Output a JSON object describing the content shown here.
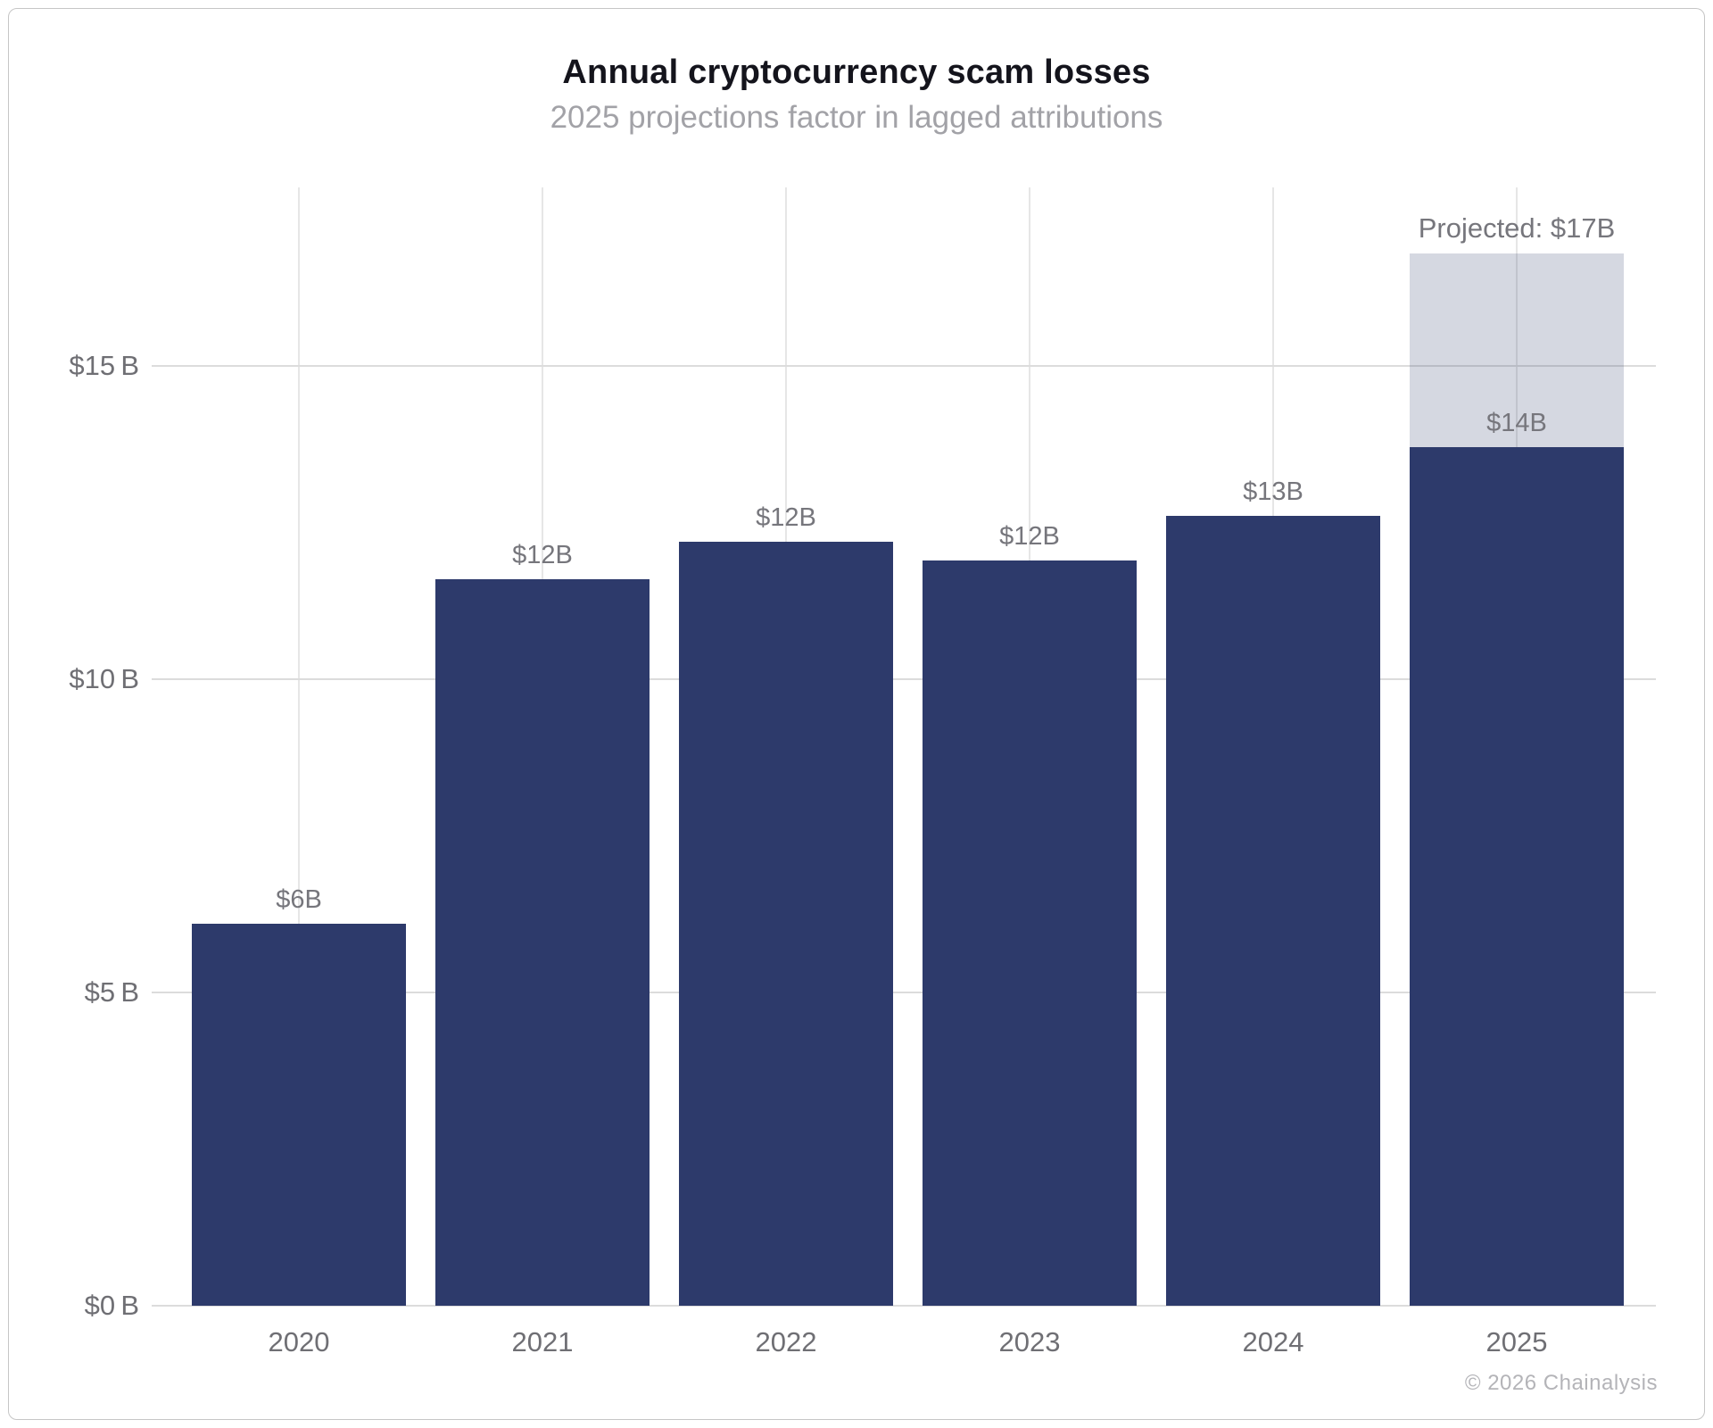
{
  "chart_data": {
    "type": "bar",
    "title": "Annual cryptocurrency scam losses",
    "subtitle": "2025 projections factor in lagged attributions",
    "categories": [
      "2020",
      "2021",
      "2022",
      "2023",
      "2024",
      "2025"
    ],
    "series": [
      {
        "name": "attributed-losses",
        "color": "#2d3a6b",
        "values": [
          6.1,
          11.6,
          12.2,
          11.9,
          12.6,
          13.7
        ]
      },
      {
        "name": "projected-additional",
        "color": "rgba(45,58,107,0.20)",
        "values": [
          0,
          0,
          0,
          0,
          0,
          3.1
        ]
      }
    ],
    "bar_labels": [
      "$6B",
      "$12B",
      "$12B",
      "$12B",
      "$13B",
      "$14B"
    ],
    "projected_annotation": {
      "category": "2025",
      "label": "Projected: $17B",
      "total": 16.8
    },
    "yticks": [
      {
        "value": 0,
        "label": "$0 B"
      },
      {
        "value": 5,
        "label": "$5 B"
      },
      {
        "value": 10,
        "label": "$10 B"
      },
      {
        "value": 15,
        "label": "$15 B"
      }
    ],
    "ylim": [
      0,
      17.85
    ],
    "xlabel": "",
    "ylabel": "",
    "grid": true,
    "legend_position": "none"
  },
  "footer": {
    "copyright": "© 2026 Chainalysis"
  }
}
